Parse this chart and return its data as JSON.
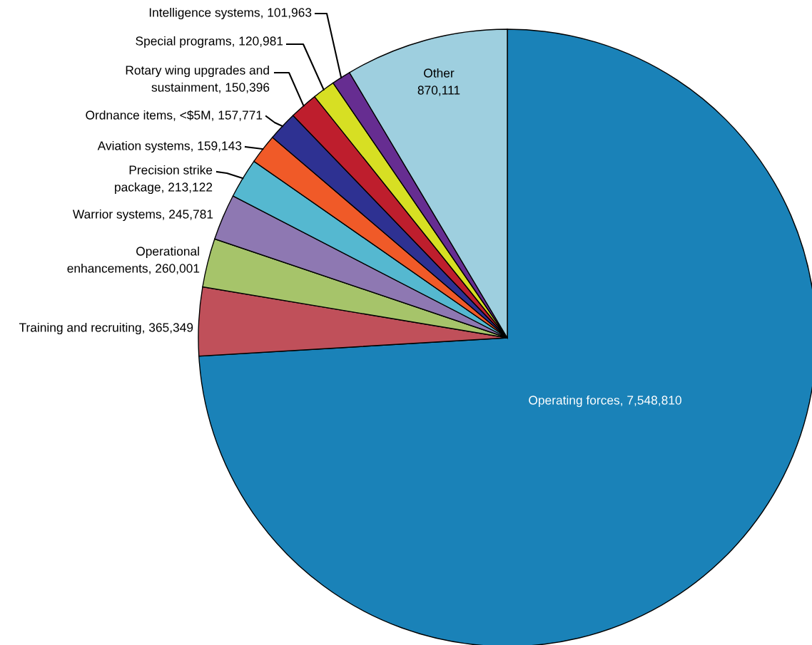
{
  "chart_data": {
    "type": "pie",
    "categories": [
      "Operating forces",
      "Training and recruiting",
      "Operational enhancements",
      "Warrior systems",
      "Precision strike package",
      "Aviation systems",
      "Ordnance items, <$5M",
      "Rotary wing upgrades and sustainment",
      "Special programs",
      "Intelligence systems",
      "Other"
    ],
    "values": [
      7548810,
      365349,
      260001,
      245781,
      213122,
      159143,
      157771,
      150396,
      120981,
      101963,
      870111
    ],
    "value_labels": [
      "7,548,810",
      "365,349",
      "260,001",
      "245,781",
      "213,122",
      "159,143",
      "157,771",
      "150,396",
      "120,981",
      "101,963",
      "870,111"
    ],
    "colors": [
      "#1a82b8",
      "#c0505a",
      "#a6c46a",
      "#8e78b2",
      "#55b8d0",
      "#f05a28",
      "#2e3192",
      "#be1e2d",
      "#d7df23",
      "#662d91",
      "#9ecfdf"
    ]
  }
}
